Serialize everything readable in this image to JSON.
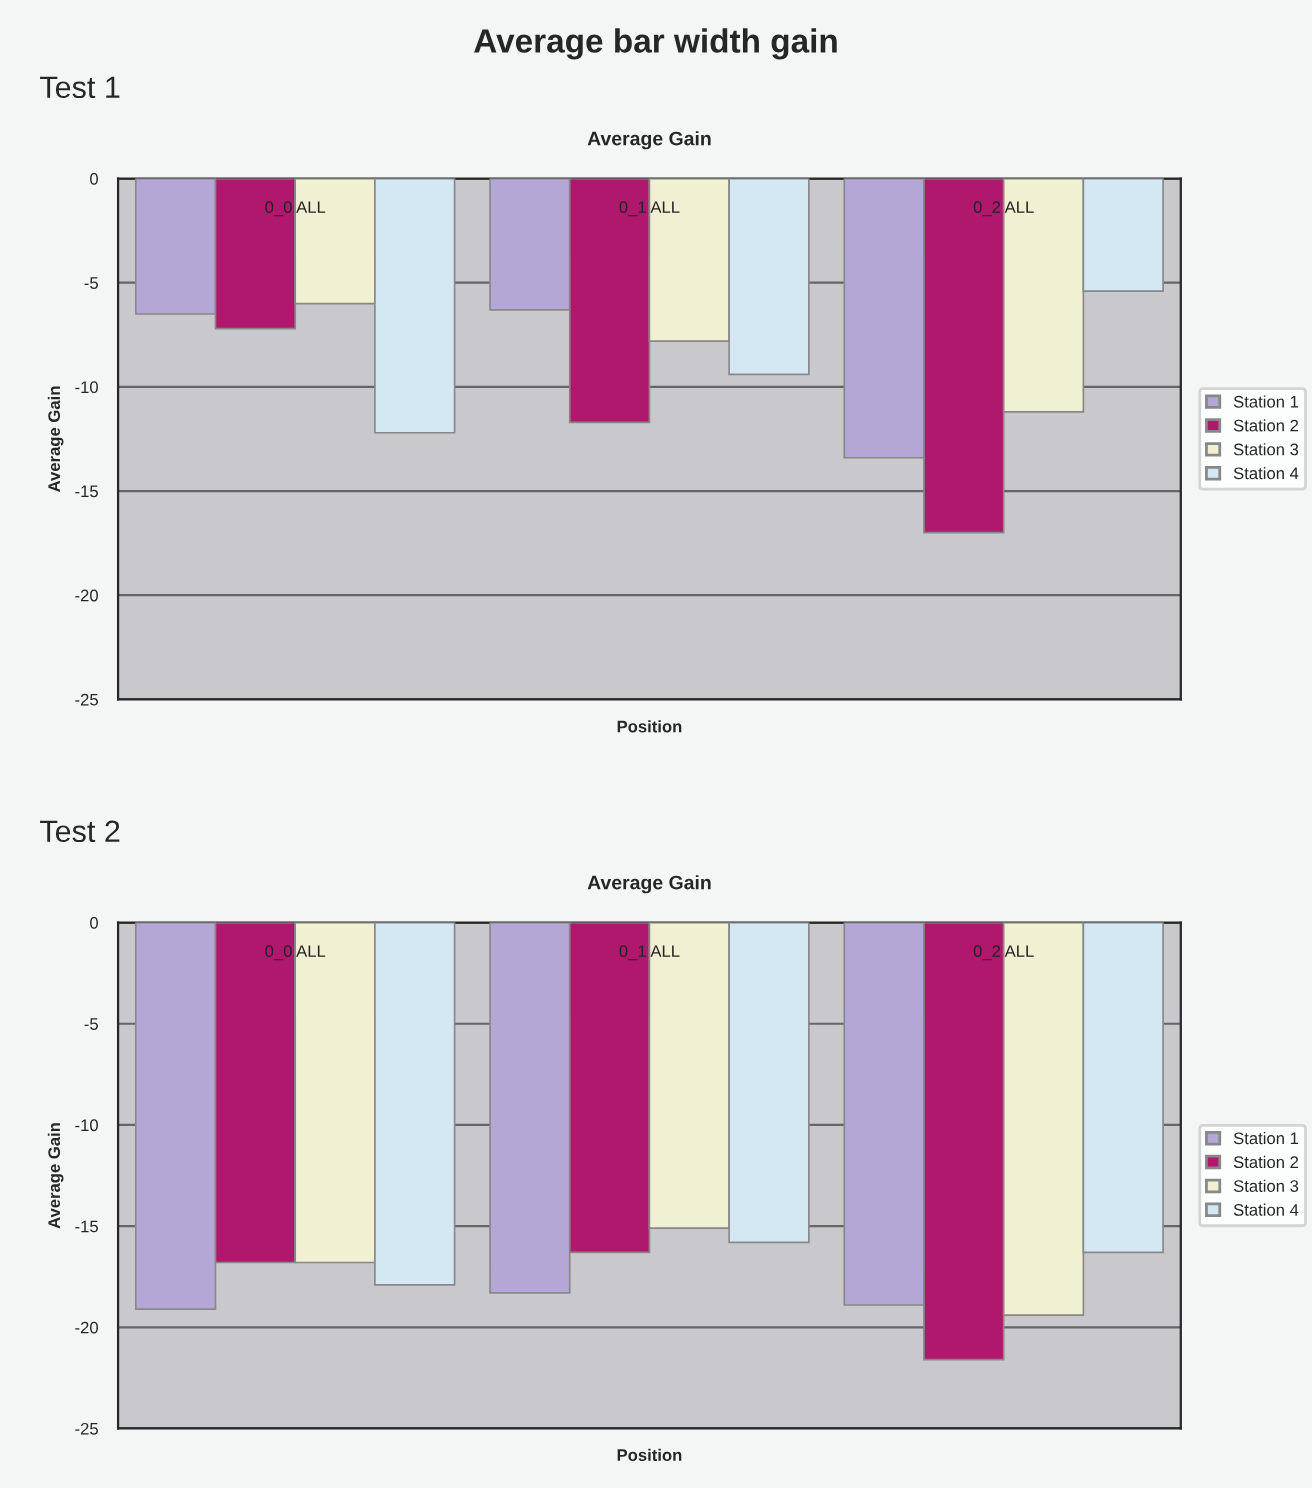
{
  "chart_data": [
    {
      "type": "bar",
      "title": "Average Gain",
      "xlabel": "Position",
      "ylabel": "Average Gain",
      "annotations": [
        "Average bar width gain",
        "Test 1"
      ],
      "categories": [
        "0_0 ALL",
        "0_1 ALL",
        "0_2 ALL"
      ],
      "series": [
        {
          "name": "Station 1",
          "color": "#b4a7d6",
          "values": [
            -6.5,
            -6.3,
            -13.4
          ]
        },
        {
          "name": "Station 2",
          "color": "#b0186e",
          "values": [
            -7.2,
            -11.7,
            -17.0
          ]
        },
        {
          "name": "Station 3",
          "color": "#f0f0d2",
          "values": [
            -6.0,
            -7.8,
            -11.2
          ]
        },
        {
          "name": "Station 4",
          "color": "#d4e8f4",
          "values": [
            -12.2,
            -9.4,
            -5.4
          ]
        }
      ],
      "ylim": [
        -25,
        0
      ],
      "yticks": [
        0,
        -5,
        -10,
        -15,
        -20,
        -25
      ],
      "grid": "y",
      "legend": "right"
    },
    {
      "type": "bar",
      "title": "Average Gain",
      "xlabel": "Position",
      "ylabel": "Average Gain",
      "annotations": [
        "Test 2"
      ],
      "categories": [
        "0_0 ALL",
        "0_1 ALL",
        "0_2 ALL"
      ],
      "series": [
        {
          "name": "Station 1",
          "color": "#b4a7d6",
          "values": [
            -19.1,
            -18.3,
            -18.9
          ]
        },
        {
          "name": "Station 2",
          "color": "#b0186e",
          "values": [
            -16.8,
            -16.3,
            -21.6
          ]
        },
        {
          "name": "Station 3",
          "color": "#f0f0d2",
          "values": [
            -16.8,
            -15.1,
            -19.4
          ]
        },
        {
          "name": "Station 4",
          "color": "#d4e8f4",
          "values": [
            -17.9,
            -15.8,
            -16.3
          ]
        }
      ],
      "ylim": [
        -25,
        0
      ],
      "yticks": [
        0,
        -5,
        -10,
        -15,
        -20,
        -25
      ],
      "grid": "y",
      "legend": "right"
    }
  ]
}
